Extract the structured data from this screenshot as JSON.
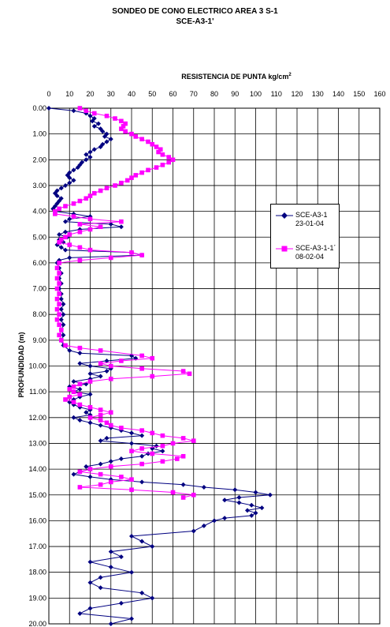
{
  "title": "SONDEO DE CONO ELECTRICO AREA 3 S-1",
  "subtitle": "SCE-A3-1'",
  "chart_data": {
    "type": "line",
    "xlabel_main": "RESISTENCIA DE PUNTA kg/cm",
    "xlabel_sup": "2",
    "ylabel": "PROFUNDIDAD (m)",
    "xlim": [
      0,
      160
    ],
    "ylim": [
      0,
      20
    ],
    "y_inverted": true,
    "x_axis_position": "top",
    "grid": true,
    "x_ticks": [
      "0",
      "10",
      "20",
      "30",
      "40",
      "50",
      "60",
      "70",
      "80",
      "90",
      "100",
      "110",
      "120",
      "130",
      "140",
      "150",
      "160"
    ],
    "y_ticks": [
      "0.00",
      "1.00",
      "2.00",
      "3.00",
      "4.00",
      "5.00",
      "6.00",
      "7.00",
      "8.00",
      "9.00",
      "10.00",
      "11.00",
      "12.00",
      "13.00",
      "14.00",
      "15.00",
      "16.00",
      "17.00",
      "18.00",
      "19.00",
      "20.00"
    ],
    "legend_position": "right",
    "series": [
      {
        "name": "SCE-A3-1",
        "name_line2": "23-01-04",
        "color": "#000080",
        "marker": "diamond",
        "points": [
          [
            0,
            0.0
          ],
          [
            12,
            0.1
          ],
          [
            18,
            0.2
          ],
          [
            20,
            0.3
          ],
          [
            22,
            0.4
          ],
          [
            21,
            0.5
          ],
          [
            24,
            0.6
          ],
          [
            22,
            0.7
          ],
          [
            25,
            0.8
          ],
          [
            26,
            0.9
          ],
          [
            28,
            1.0
          ],
          [
            27,
            1.1
          ],
          [
            30,
            1.2
          ],
          [
            28,
            1.3
          ],
          [
            26,
            1.4
          ],
          [
            25,
            1.5
          ],
          [
            22,
            1.6
          ],
          [
            20,
            1.7
          ],
          [
            18,
            1.8
          ],
          [
            20,
            1.9
          ],
          [
            18,
            2.0
          ],
          [
            16,
            2.1
          ],
          [
            15,
            2.2
          ],
          [
            14,
            2.3
          ],
          [
            12,
            2.4
          ],
          [
            10,
            2.5
          ],
          [
            9,
            2.6
          ],
          [
            10,
            2.7
          ],
          [
            12,
            2.8
          ],
          [
            10,
            2.9
          ],
          [
            8,
            3.0
          ],
          [
            6,
            3.1
          ],
          [
            4,
            3.2
          ],
          [
            3,
            3.3
          ],
          [
            4,
            3.4
          ],
          [
            6,
            3.5
          ],
          [
            5,
            3.6
          ],
          [
            4,
            3.7
          ],
          [
            3,
            3.8
          ],
          [
            2,
            3.9
          ],
          [
            3,
            4.0
          ],
          [
            12,
            4.1
          ],
          [
            20,
            4.2
          ],
          [
            10,
            4.3
          ],
          [
            8,
            4.4
          ],
          [
            30,
            4.5
          ],
          [
            35,
            4.6
          ],
          [
            15,
            4.7
          ],
          [
            8,
            4.8
          ],
          [
            5,
            4.9
          ],
          [
            9,
            5.0
          ],
          [
            5,
            5.1
          ],
          [
            7,
            5.2
          ],
          [
            4,
            5.3
          ],
          [
            6,
            5.4
          ],
          [
            8,
            5.5
          ],
          [
            40,
            5.6
          ],
          [
            45,
            5.7
          ],
          [
            10,
            5.8
          ],
          [
            5,
            5.9
          ],
          [
            4,
            6.0
          ],
          [
            5,
            6.2
          ],
          [
            6,
            6.4
          ],
          [
            5,
            6.6
          ],
          [
            6,
            6.8
          ],
          [
            5,
            7.0
          ],
          [
            6,
            7.2
          ],
          [
            6,
            7.4
          ],
          [
            7,
            7.6
          ],
          [
            6,
            7.8
          ],
          [
            7,
            8.0
          ],
          [
            6,
            8.2
          ],
          [
            7,
            8.4
          ],
          [
            6,
            8.6
          ],
          [
            7,
            8.8
          ],
          [
            6,
            9.0
          ],
          [
            7,
            9.2
          ],
          [
            10,
            9.4
          ],
          [
            15,
            9.5
          ],
          [
            40,
            9.6
          ],
          [
            42,
            9.7
          ],
          [
            28,
            9.8
          ],
          [
            15,
            9.9
          ],
          [
            20,
            10.0
          ],
          [
            30,
            10.1
          ],
          [
            28,
            10.2
          ],
          [
            20,
            10.3
          ],
          [
            25,
            10.4
          ],
          [
            20,
            10.5
          ],
          [
            12,
            10.6
          ],
          [
            18,
            10.7
          ],
          [
            10,
            10.8
          ],
          [
            15,
            10.9
          ],
          [
            12,
            11.0
          ],
          [
            20,
            11.1
          ],
          [
            15,
            11.2
          ],
          [
            12,
            11.3
          ],
          [
            10,
            11.4
          ],
          [
            12,
            11.5
          ],
          [
            15,
            11.6
          ],
          [
            20,
            11.7
          ],
          [
            18,
            11.8
          ],
          [
            20,
            11.9
          ],
          [
            12,
            12.0
          ],
          [
            15,
            12.1
          ],
          [
            20,
            12.2
          ],
          [
            25,
            12.3
          ],
          [
            30,
            12.4
          ],
          [
            35,
            12.5
          ],
          [
            40,
            12.6
          ],
          [
            45,
            12.7
          ],
          [
            28,
            12.8
          ],
          [
            25,
            12.9
          ],
          [
            40,
            13.0
          ],
          [
            52,
            13.1
          ],
          [
            50,
            13.2
          ],
          [
            55,
            13.3
          ],
          [
            48,
            13.4
          ],
          [
            45,
            13.5
          ],
          [
            35,
            13.6
          ],
          [
            30,
            13.7
          ],
          [
            25,
            13.8
          ],
          [
            18,
            13.9
          ],
          [
            20,
            14.0
          ],
          [
            15,
            14.1
          ],
          [
            12,
            14.2
          ],
          [
            20,
            14.3
          ],
          [
            30,
            14.4
          ],
          [
            45,
            14.5
          ],
          [
            65,
            14.6
          ],
          [
            75,
            14.7
          ],
          [
            90,
            14.8
          ],
          [
            100,
            14.9
          ],
          [
            107,
            15.0
          ],
          [
            92,
            15.1
          ],
          [
            85,
            15.2
          ],
          [
            92,
            15.3
          ],
          [
            98,
            15.4
          ],
          [
            103,
            15.5
          ],
          [
            96,
            15.6
          ],
          [
            100,
            15.7
          ],
          [
            98,
            15.8
          ],
          [
            85,
            15.9
          ],
          [
            80,
            16.0
          ],
          [
            75,
            16.2
          ],
          [
            70,
            16.4
          ],
          [
            40,
            16.6
          ],
          [
            45,
            16.8
          ],
          [
            50,
            17.0
          ],
          [
            30,
            17.2
          ],
          [
            35,
            17.4
          ],
          [
            20,
            17.6
          ],
          [
            30,
            17.8
          ],
          [
            40,
            18.0
          ],
          [
            25,
            18.2
          ],
          [
            20,
            18.4
          ],
          [
            25,
            18.6
          ],
          [
            45,
            18.8
          ],
          [
            50,
            19.0
          ],
          [
            35,
            19.2
          ],
          [
            20,
            19.4
          ],
          [
            15,
            19.6
          ],
          [
            40,
            19.8
          ],
          [
            30,
            20.0
          ]
        ]
      },
      {
        "name": "SCE-A3-1-1´",
        "name_line2": "08-02-04",
        "color": "#ff00ff",
        "marker": "square",
        "points": [
          [
            15,
            0.0
          ],
          [
            18,
            0.1
          ],
          [
            22,
            0.2
          ],
          [
            28,
            0.3
          ],
          [
            32,
            0.4
          ],
          [
            35,
            0.5
          ],
          [
            37,
            0.6
          ],
          [
            36,
            0.7
          ],
          [
            35,
            0.8
          ],
          [
            37,
            0.9
          ],
          [
            40,
            1.0
          ],
          [
            42,
            1.1
          ],
          [
            45,
            1.2
          ],
          [
            48,
            1.3
          ],
          [
            50,
            1.4
          ],
          [
            52,
            1.5
          ],
          [
            54,
            1.6
          ],
          [
            53,
            1.7
          ],
          [
            55,
            1.8
          ],
          [
            58,
            1.9
          ],
          [
            60,
            2.0
          ],
          [
            58,
            2.1
          ],
          [
            55,
            2.2
          ],
          [
            52,
            2.3
          ],
          [
            48,
            2.4
          ],
          [
            45,
            2.5
          ],
          [
            42,
            2.6
          ],
          [
            40,
            2.7
          ],
          [
            38,
            2.8
          ],
          [
            35,
            2.9
          ],
          [
            32,
            3.0
          ],
          [
            28,
            3.1
          ],
          [
            25,
            3.2
          ],
          [
            22,
            3.3
          ],
          [
            20,
            3.4
          ],
          [
            18,
            3.5
          ],
          [
            15,
            3.6
          ],
          [
            12,
            3.7
          ],
          [
            8,
            3.8
          ],
          [
            5,
            3.9
          ],
          [
            3,
            4.0
          ],
          [
            3,
            4.1
          ],
          [
            12,
            4.2
          ],
          [
            20,
            4.3
          ],
          [
            35,
            4.4
          ],
          [
            15,
            4.5
          ],
          [
            25,
            4.6
          ],
          [
            20,
            4.7
          ],
          [
            15,
            4.8
          ],
          [
            10,
            4.9
          ],
          [
            8,
            5.0
          ],
          [
            6,
            5.1
          ],
          [
            5,
            5.2
          ],
          [
            10,
            5.3
          ],
          [
            15,
            5.4
          ],
          [
            20,
            5.5
          ],
          [
            40,
            5.6
          ],
          [
            45,
            5.7
          ],
          [
            30,
            5.8
          ],
          [
            15,
            5.9
          ],
          [
            5,
            6.0
          ],
          [
            4,
            6.2
          ],
          [
            5,
            6.4
          ],
          [
            4,
            6.6
          ],
          [
            5,
            6.8
          ],
          [
            4,
            7.0
          ],
          [
            5,
            7.2
          ],
          [
            4,
            7.4
          ],
          [
            5,
            7.6
          ],
          [
            4,
            7.8
          ],
          [
            5,
            8.0
          ],
          [
            4,
            8.2
          ],
          [
            5,
            8.4
          ],
          [
            6,
            8.6
          ],
          [
            5,
            8.8
          ],
          [
            6,
            9.0
          ],
          [
            8,
            9.2
          ],
          [
            15,
            9.3
          ],
          [
            25,
            9.4
          ],
          [
            45,
            9.6
          ],
          [
            50,
            9.7
          ],
          [
            35,
            9.8
          ],
          [
            25,
            9.9
          ],
          [
            30,
            10.0
          ],
          [
            45,
            10.1
          ],
          [
            65,
            10.2
          ],
          [
            68,
            10.3
          ],
          [
            50,
            10.4
          ],
          [
            30,
            10.5
          ],
          [
            20,
            10.6
          ],
          [
            15,
            10.7
          ],
          [
            12,
            10.8
          ],
          [
            10,
            10.9
          ],
          [
            12,
            11.0
          ],
          [
            15,
            11.1
          ],
          [
            10,
            11.2
          ],
          [
            8,
            11.3
          ],
          [
            12,
            11.4
          ],
          [
            15,
            11.5
          ],
          [
            20,
            11.6
          ],
          [
            25,
            11.7
          ],
          [
            30,
            11.8
          ],
          [
            25,
            11.9
          ],
          [
            20,
            12.0
          ],
          [
            25,
            12.1
          ],
          [
            28,
            12.2
          ],
          [
            30,
            12.3
          ],
          [
            35,
            12.4
          ],
          [
            45,
            12.5
          ],
          [
            50,
            12.6
          ],
          [
            55,
            12.7
          ],
          [
            65,
            12.8
          ],
          [
            70,
            12.9
          ],
          [
            60,
            13.0
          ],
          [
            55,
            13.1
          ],
          [
            45,
            13.2
          ],
          [
            40,
            13.3
          ],
          [
            50,
            13.4
          ],
          [
            65,
            13.5
          ],
          [
            62,
            13.6
          ],
          [
            55,
            13.7
          ],
          [
            45,
            13.8
          ],
          [
            30,
            13.9
          ],
          [
            20,
            14.0
          ],
          [
            15,
            14.1
          ],
          [
            25,
            14.2
          ],
          [
            35,
            14.3
          ],
          [
            40,
            14.4
          ],
          [
            30,
            14.5
          ],
          [
            25,
            14.6
          ],
          [
            15,
            14.7
          ],
          [
            40,
            14.8
          ],
          [
            60,
            14.9
          ],
          [
            70,
            15.0
          ],
          [
            65,
            15.1
          ]
        ]
      }
    ]
  }
}
